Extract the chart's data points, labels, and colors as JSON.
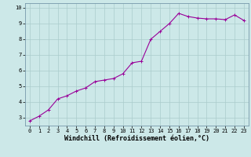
{
  "x": [
    0,
    1,
    2,
    3,
    4,
    5,
    6,
    7,
    8,
    9,
    10,
    11,
    12,
    13,
    14,
    15,
    16,
    17,
    18,
    19,
    20,
    21,
    22,
    23
  ],
  "y": [
    2.8,
    3.1,
    3.5,
    4.2,
    4.4,
    4.7,
    4.9,
    5.3,
    5.4,
    5.5,
    5.8,
    6.5,
    6.6,
    8.0,
    8.5,
    9.0,
    9.65,
    9.45,
    9.35,
    9.3,
    9.3,
    9.25,
    9.55,
    9.2
  ],
  "line_color": "#990099",
  "marker": "+",
  "bg_color": "#cce8e8",
  "grid_color": "#aacccc",
  "xlabel": "Windchill (Refroidissement éolien,°C)",
  "xlim": [
    -0.5,
    23.5
  ],
  "ylim": [
    2.5,
    10.3
  ],
  "yticks": [
    3,
    4,
    5,
    6,
    7,
    8,
    9,
    10
  ],
  "xticks": [
    0,
    1,
    2,
    3,
    4,
    5,
    6,
    7,
    8,
    9,
    10,
    11,
    12,
    13,
    14,
    15,
    16,
    17,
    18,
    19,
    20,
    21,
    22,
    23
  ],
  "tick_fontsize": 5.0,
  "xlabel_fontsize": 6.0,
  "line_width": 0.8,
  "marker_size": 3.0,
  "marker_ew": 0.7
}
